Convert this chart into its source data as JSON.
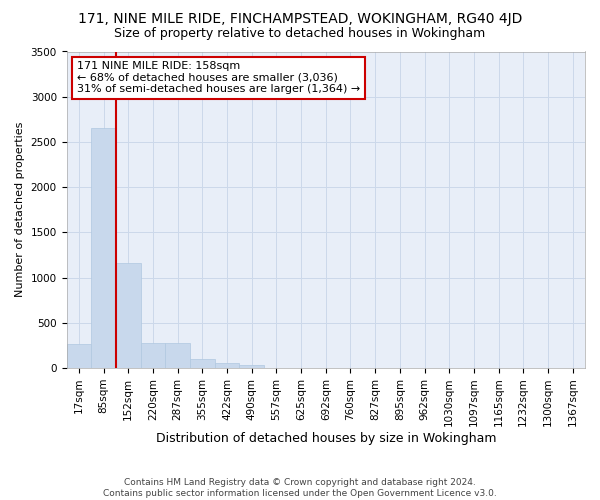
{
  "title1": "171, NINE MILE RIDE, FINCHAMPSTEAD, WOKINGHAM, RG40 4JD",
  "title2": "Size of property relative to detached houses in Wokingham",
  "xlabel": "Distribution of detached houses by size in Wokingham",
  "ylabel": "Number of detached properties",
  "footer1": "Contains HM Land Registry data © Crown copyright and database right 2024.",
  "footer2": "Contains public sector information licensed under the Open Government Licence v3.0.",
  "bar_labels": [
    "17sqm",
    "85sqm",
    "152sqm",
    "220sqm",
    "287sqm",
    "355sqm",
    "422sqm",
    "490sqm",
    "557sqm",
    "625sqm",
    "692sqm",
    "760sqm",
    "827sqm",
    "895sqm",
    "962sqm",
    "1030sqm",
    "1097sqm",
    "1165sqm",
    "1232sqm",
    "1300sqm",
    "1367sqm"
  ],
  "bar_heights": [
    270,
    2650,
    1160,
    280,
    280,
    95,
    60,
    38,
    0,
    0,
    0,
    0,
    0,
    0,
    0,
    0,
    0,
    0,
    0,
    0,
    0
  ],
  "bar_color": "#c8d8ec",
  "bar_edge_color": "#b0c8e0",
  "grid_color": "#ccd8ea",
  "red_line_color": "#cc0000",
  "annotation_text": "171 NINE MILE RIDE: 158sqm\n← 68% of detached houses are smaller (3,036)\n31% of semi-detached houses are larger (1,364) →",
  "annotation_box_color": "#ffffff",
  "annotation_box_edge": "#cc0000",
  "ylim": [
    0,
    3500
  ],
  "yticks": [
    0,
    500,
    1000,
    1500,
    2000,
    2500,
    3000,
    3500
  ],
  "background_color": "#e8eef8",
  "title1_fontsize": 10,
  "title2_fontsize": 9,
  "ylabel_fontsize": 8,
  "xlabel_fontsize": 9,
  "tick_fontsize": 7.5,
  "footer_fontsize": 6.5,
  "ann_fontsize": 8
}
